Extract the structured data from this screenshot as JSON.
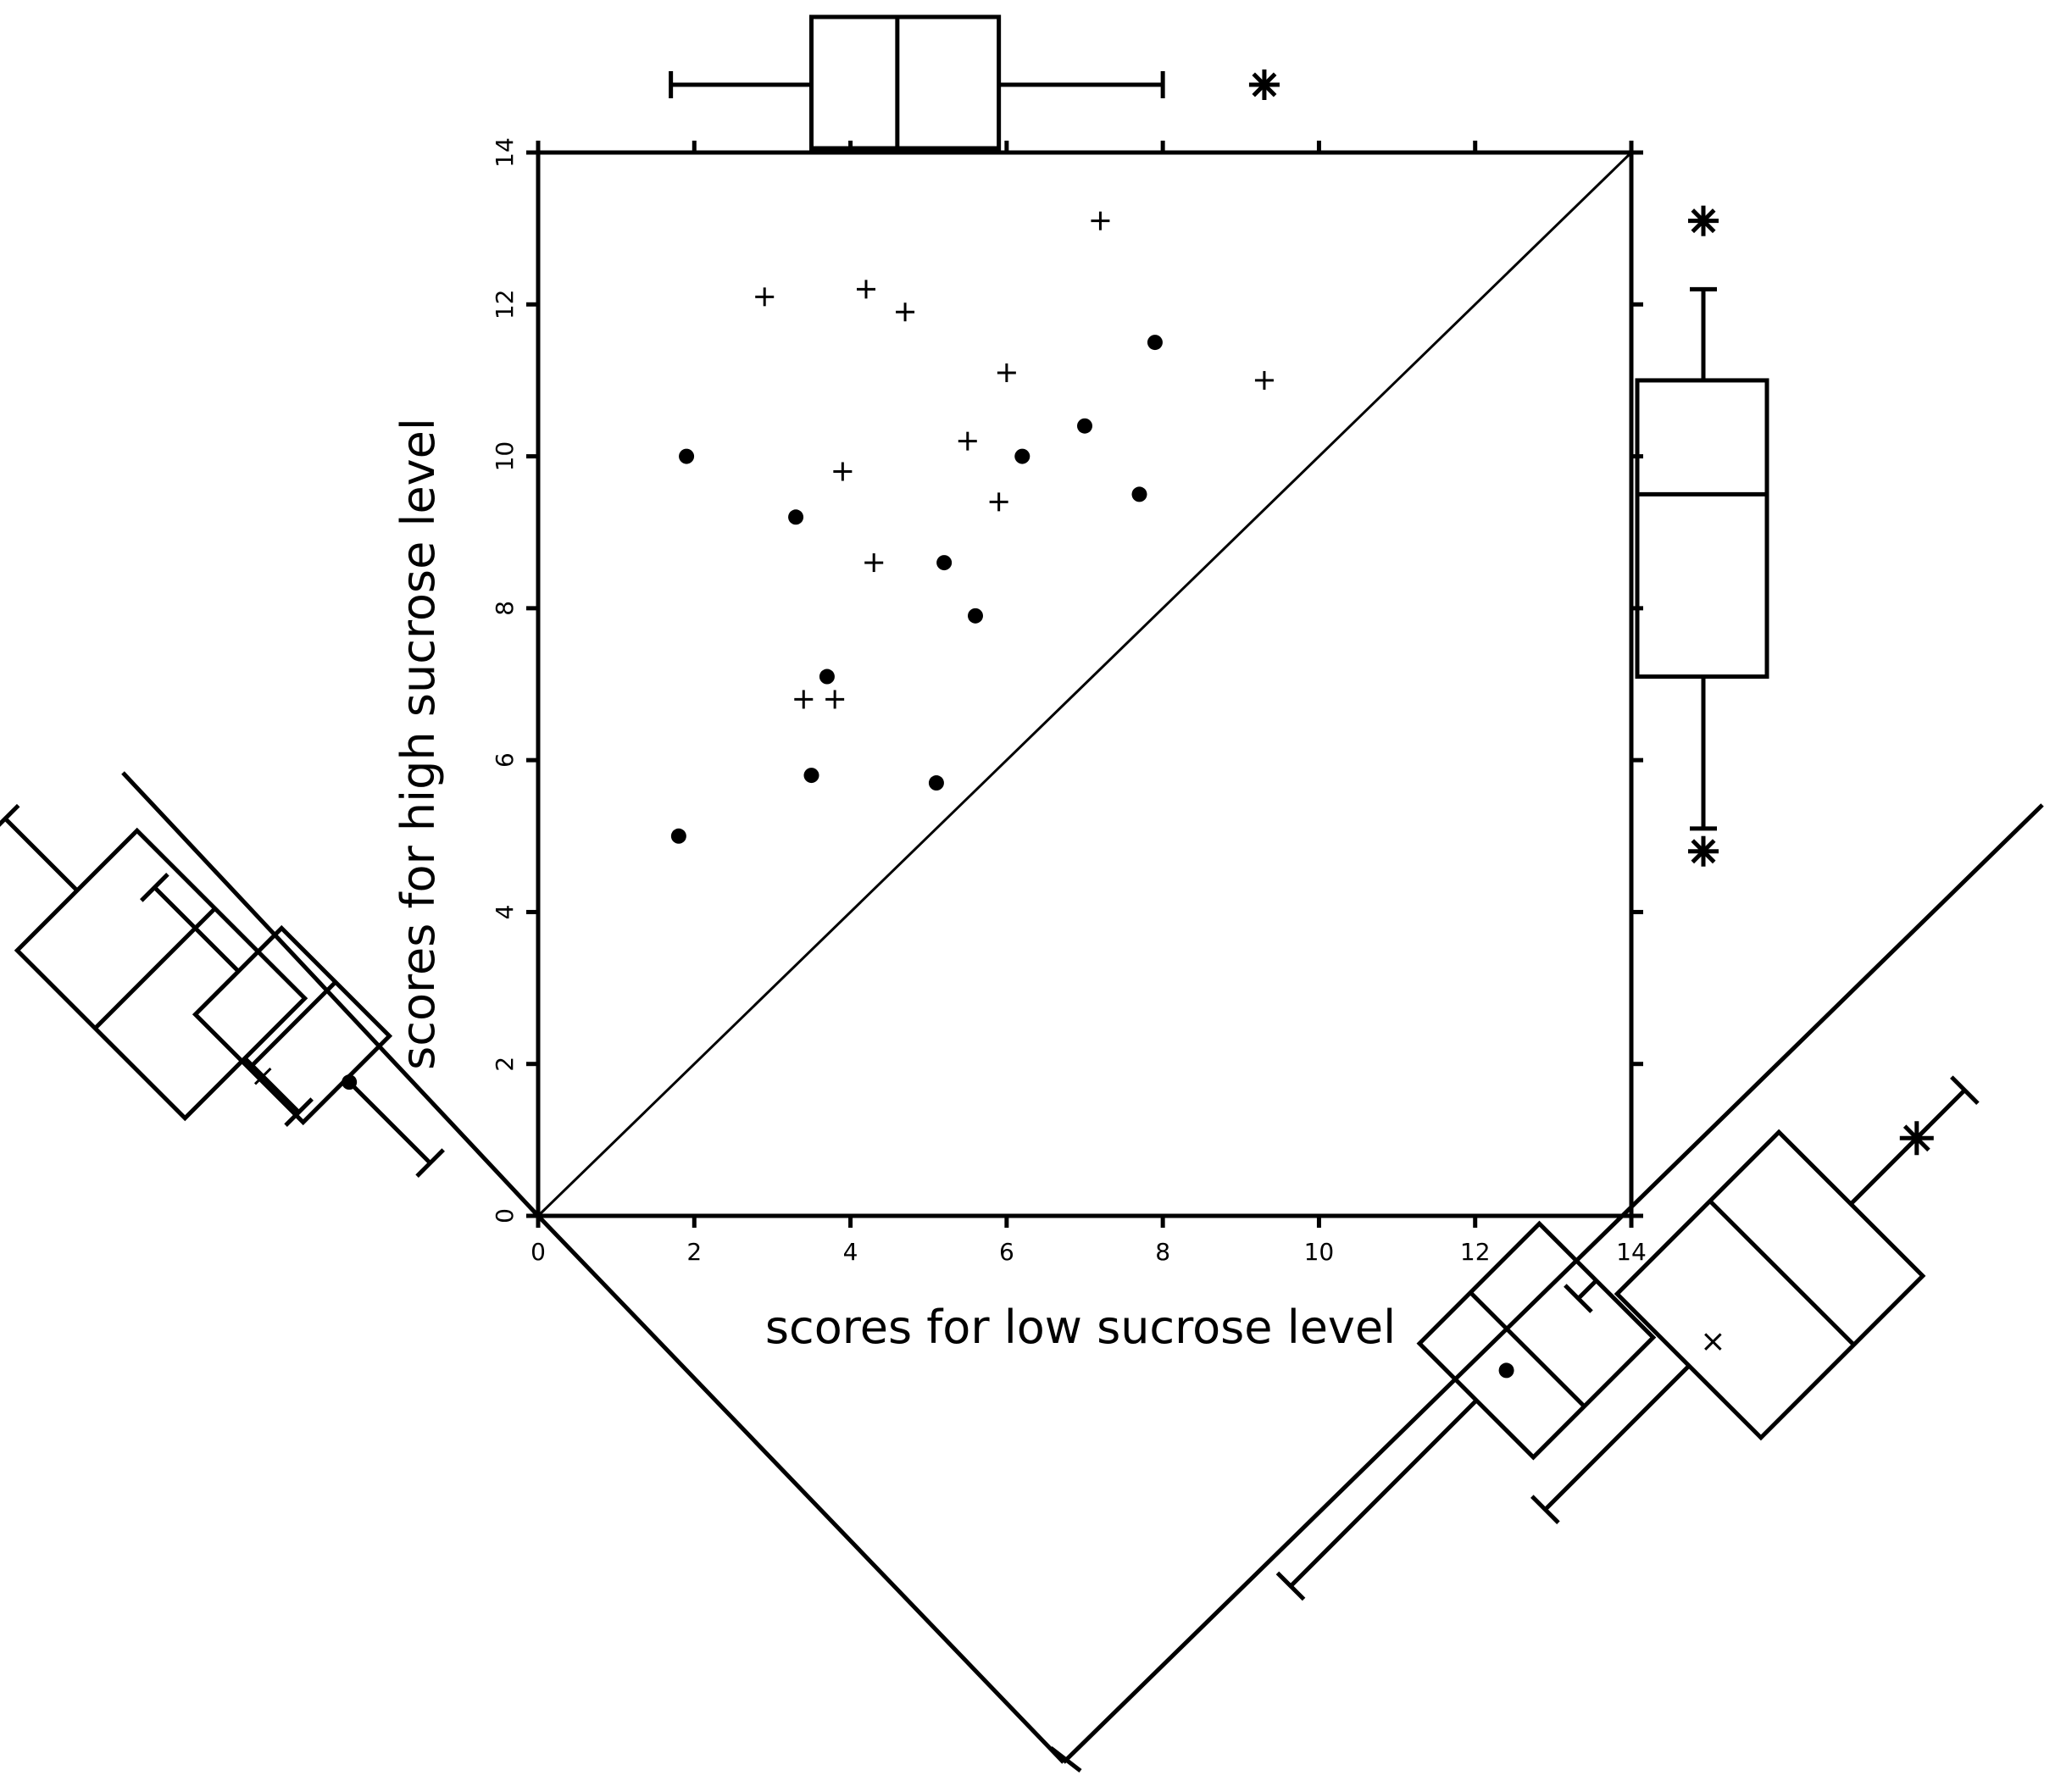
{
  "chart_data": {
    "type": "scatter",
    "title": "",
    "xlabel": "scores for low sucrose level",
    "ylabel": "scores for high sucrose level",
    "xlim": [
      0,
      14
    ],
    "ylim": [
      0,
      14
    ],
    "x_ticks": [
      "0",
      "2",
      "4",
      "6",
      "8",
      "10",
      "12",
      "14"
    ],
    "y_ticks": [
      "0",
      "2",
      "4",
      "6",
      "8",
      "10",
      "12",
      "14"
    ],
    "grid": false,
    "reference_line": {
      "description": "line of equality y = x",
      "from": [
        0,
        0
      ],
      "to": [
        14,
        14
      ]
    },
    "series": [
      {
        "marker": "dot",
        "points": [
          [
            1.8,
            5.0
          ],
          [
            1.9,
            10.0
          ],
          [
            3.3,
            9.2
          ],
          [
            3.5,
            5.8
          ],
          [
            3.7,
            7.1
          ],
          [
            5.1,
            5.7
          ],
          [
            5.2,
            8.6
          ],
          [
            5.6,
            7.9
          ],
          [
            6.2,
            10.0
          ],
          [
            7.0,
            10.4
          ],
          [
            7.7,
            9.5
          ],
          [
            7.9,
            11.5
          ]
        ]
      },
      {
        "marker": "plus",
        "points": [
          [
            2.9,
            12.1
          ],
          [
            3.4,
            6.8
          ],
          [
            3.8,
            6.8
          ],
          [
            3.9,
            9.8
          ],
          [
            4.2,
            12.2
          ],
          [
            4.3,
            8.6
          ],
          [
            4.7,
            11.9
          ],
          [
            5.5,
            10.2
          ],
          [
            5.9,
            9.4
          ],
          [
            6.0,
            11.1
          ],
          [
            7.2,
            13.1
          ],
          [
            9.3,
            11.0
          ]
        ]
      }
    ],
    "marginal_boxplots": {
      "top_low_sucrose": {
        "whisker_low": 1.7,
        "q1": 3.5,
        "median": 4.6,
        "q3": 5.9,
        "whisker_high": 8.0,
        "outliers": [
          9.3
        ]
      },
      "right_high_sucrose": {
        "whisker_low": 5.1,
        "q1": 7.1,
        "median": 9.5,
        "q3": 11.0,
        "whisker_high": 12.2,
        "outliers": [
          13.1,
          4.8
        ]
      }
    }
  }
}
